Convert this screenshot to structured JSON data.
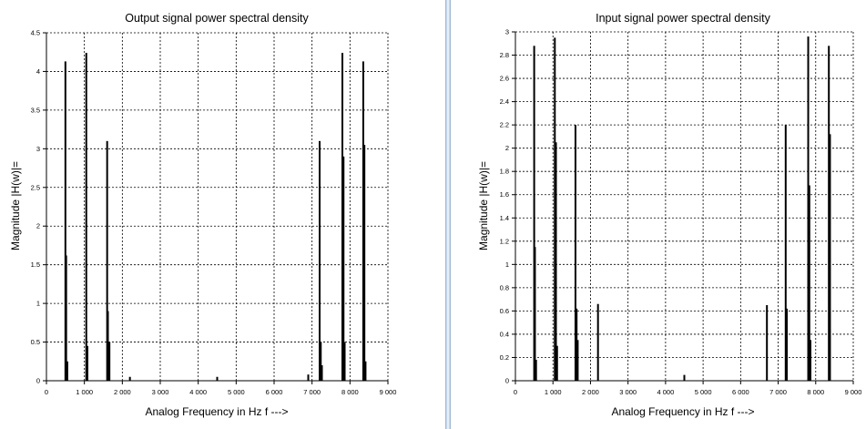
{
  "colors": {
    "background": "#ffffff",
    "axis": "#000000",
    "grid": "#000000",
    "bars": "#000000",
    "splitter": "#c9d9ea"
  },
  "chart_data": [
    {
      "type": "bar",
      "title": "Output signal power spectral density",
      "xlabel": "Analog Frequency in Hz f --->",
      "ylabel": "Magnitude |H(w)|=",
      "xlim": [
        0,
        9000
      ],
      "ylim": [
        0,
        4.5
      ],
      "x_ticks": [
        0,
        1000,
        2000,
        3000,
        4000,
        5000,
        6000,
        7000,
        8000,
        9000
      ],
      "x_tick_labels": [
        "0",
        "1 000",
        "2 000",
        "3 000",
        "4 000",
        "5 000",
        "6 000",
        "7 000",
        "8 000",
        "9 000"
      ],
      "y_ticks": [
        0,
        0.5,
        1,
        1.5,
        2,
        2.5,
        3,
        3.5,
        4,
        4.5
      ],
      "y_tick_labels": [
        "0",
        "0.5",
        "1",
        "1.5",
        "2",
        "2.5",
        "3",
        "3.5",
        "4",
        "4.5"
      ],
      "grid": true,
      "x": [
        500,
        520,
        550,
        1050,
        1080,
        1600,
        1620,
        1660,
        2200,
        4500,
        6900,
        7200,
        7230,
        7260,
        7800,
        7830,
        7860,
        8350,
        8380,
        8410
      ],
      "values": [
        4.13,
        1.62,
        0.25,
        4.24,
        0.45,
        3.1,
        0.9,
        0.5,
        0.05,
        0.05,
        0.08,
        3.1,
        0.5,
        0.2,
        4.24,
        2.9,
        0.5,
        4.13,
        3.05,
        0.25
      ]
    },
    {
      "type": "bar",
      "title": "Input signal power spectral density",
      "xlabel": "Analog Frequency in Hz f --->",
      "ylabel": "Magnitude |H(w)|=",
      "xlim": [
        0,
        9000
      ],
      "ylim": [
        0,
        3
      ],
      "x_ticks": [
        0,
        1000,
        2000,
        3000,
        4000,
        5000,
        6000,
        7000,
        8000,
        9000
      ],
      "x_tick_labels": [
        "0",
        "1 000",
        "2 000",
        "3 000",
        "4 000",
        "5 000",
        "6 000",
        "7 000",
        "8 000",
        "9 000"
      ],
      "y_ticks": [
        0,
        0.2,
        0.4,
        0.6,
        0.8,
        1,
        1.2,
        1.4,
        1.6,
        1.8,
        2,
        2.2,
        2.4,
        2.6,
        2.8,
        3
      ],
      "y_tick_labels": [
        "0",
        "0.2",
        "0.4",
        "0.6",
        "0.8",
        "1",
        "1.2",
        "1.4",
        "1.6",
        "1.8",
        "2",
        "2.2",
        "2.4",
        "2.6",
        "2.8",
        "3"
      ],
      "grid": true,
      "x": [
        500,
        520,
        550,
        1050,
        1080,
        1110,
        1600,
        1630,
        1660,
        2200,
        4500,
        6700,
        7200,
        7230,
        7800,
        7830,
        7860,
        8350,
        8380
      ],
      "values": [
        2.88,
        1.15,
        0.18,
        2.95,
        2.05,
        0.3,
        2.2,
        0.62,
        0.35,
        0.66,
        0.05,
        0.65,
        2.2,
        0.62,
        2.96,
        1.68,
        0.35,
        2.88,
        2.12
      ]
    }
  ]
}
